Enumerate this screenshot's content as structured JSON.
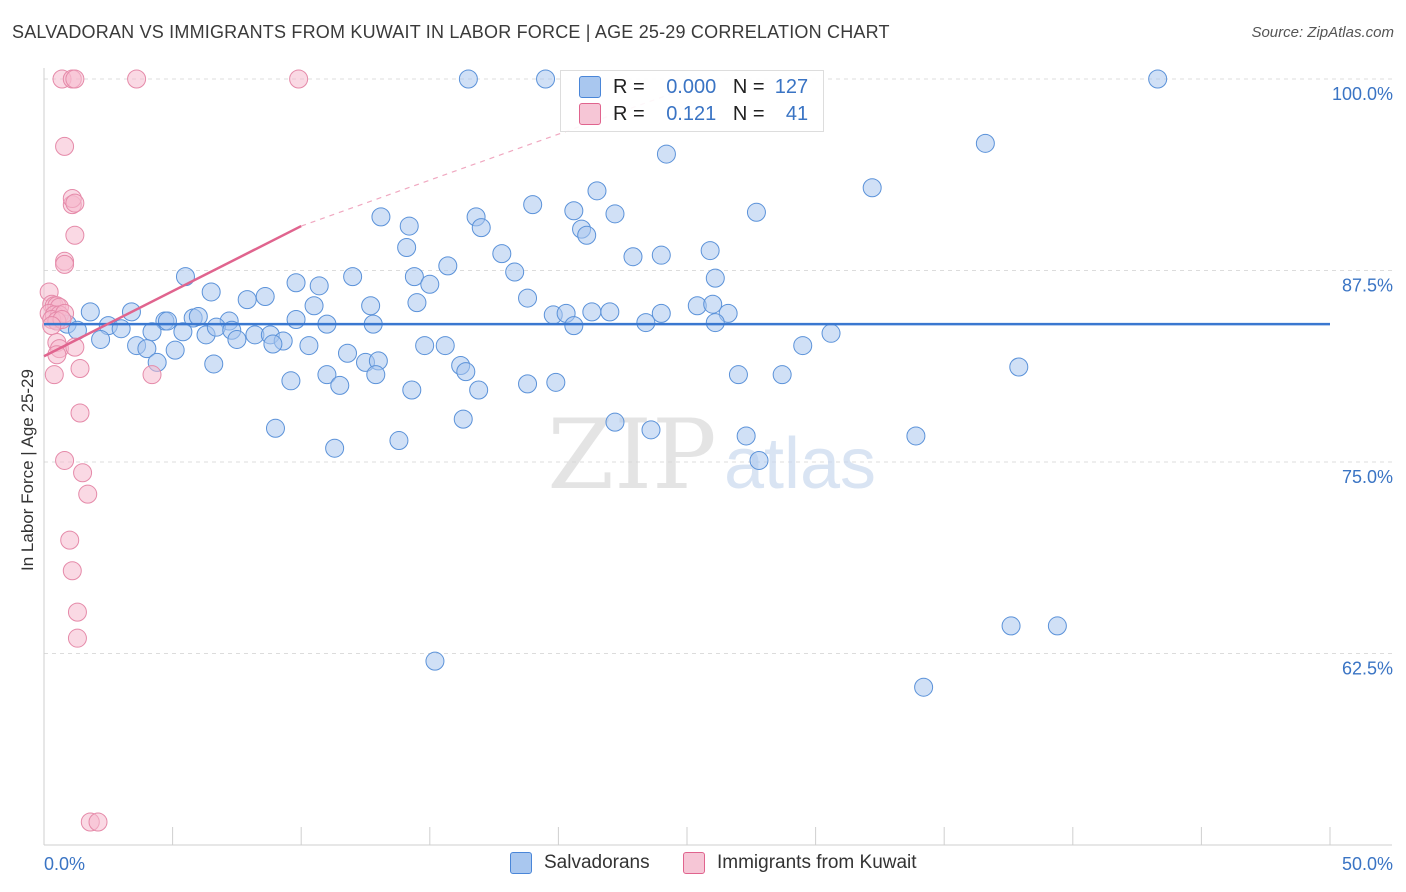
{
  "header": {
    "title": "SALVADORAN VS IMMIGRANTS FROM KUWAIT IN LABOR FORCE | AGE 25-29 CORRELATION CHART",
    "source": "Source: ZipAtlas.com"
  },
  "watermark": {
    "zip": "ZIP",
    "atlas": "atlas"
  },
  "legend": {
    "rows": [
      {
        "r_label": "R =",
        "r_value": "0.000",
        "n_label": "N =",
        "n_value": "127"
      },
      {
        "r_label": "R =",
        "r_value": "0.121",
        "n_label": "N =",
        "n_value": "41"
      }
    ]
  },
  "chart_data": {
    "type": "scatter",
    "title": "SALVADORAN VS IMMIGRANTS FROM KUWAIT IN LABOR FORCE | AGE 25-29 CORRELATION CHART",
    "xlabel": "",
    "ylabel": "In Labor Force | Age 25-29",
    "xlim": [
      0,
      50
    ],
    "ylim": [
      50,
      100
    ],
    "x_tick_labels": [
      "0.0%",
      "50.0%"
    ],
    "y_ticks": [
      62.5,
      75.0,
      87.5,
      100.0
    ],
    "y_tick_labels": [
      "62.5%",
      "75.0%",
      "87.5%",
      "100.0%"
    ],
    "grid": true,
    "legend_position": "top-center",
    "colors": {
      "blue": "#4a86d8",
      "blue_fill": "#a9c7ef",
      "pink": "#e0648e",
      "pink_fill": "#f6b9cd",
      "tick_label": "#3a74c4"
    },
    "series": [
      {
        "name": "Salvadorans",
        "color": "#4a86d8",
        "trend": {
          "x": [
            0.0,
            50.0
          ],
          "y": [
            84.0,
            84.0
          ]
        },
        "points": [
          [
            16.5,
            100
          ],
          [
            19.5,
            100
          ],
          [
            43.3,
            100
          ],
          [
            24.2,
            95.1
          ],
          [
            36.6,
            95.8
          ],
          [
            32.2,
            92.9
          ],
          [
            21.5,
            92.7
          ],
          [
            19.0,
            91.8
          ],
          [
            27.7,
            91.3
          ],
          [
            13.1,
            91.0
          ],
          [
            16.8,
            91.0
          ],
          [
            20.6,
            91.4
          ],
          [
            22.2,
            91.2
          ],
          [
            14.2,
            90.4
          ],
          [
            17.0,
            90.3
          ],
          [
            20.9,
            90.2
          ],
          [
            21.1,
            89.8
          ],
          [
            14.1,
            89.0
          ],
          [
            25.9,
            88.8
          ],
          [
            17.8,
            88.6
          ],
          [
            22.9,
            88.4
          ],
          [
            24.0,
            88.5
          ],
          [
            15.7,
            87.8
          ],
          [
            18.3,
            87.4
          ],
          [
            5.5,
            87.1
          ],
          [
            12.0,
            87.1
          ],
          [
            14.4,
            87.1
          ],
          [
            26.1,
            87.0
          ],
          [
            9.8,
            86.7
          ],
          [
            15.0,
            86.6
          ],
          [
            10.7,
            86.5
          ],
          [
            6.5,
            86.1
          ],
          [
            18.8,
            85.7
          ],
          [
            7.9,
            85.6
          ],
          [
            8.6,
            85.8
          ],
          [
            14.5,
            85.4
          ],
          [
            10.5,
            85.2
          ],
          [
            12.7,
            85.2
          ],
          [
            25.4,
            85.2
          ],
          [
            26.0,
            85.3
          ],
          [
            21.3,
            84.8
          ],
          [
            19.8,
            84.6
          ],
          [
            20.3,
            84.7
          ],
          [
            22.0,
            84.8
          ],
          [
            24.0,
            84.7
          ],
          [
            26.6,
            84.7
          ],
          [
            1.8,
            84.8
          ],
          [
            3.4,
            84.8
          ],
          [
            4.7,
            84.2
          ],
          [
            5.8,
            84.4
          ],
          [
            6.0,
            84.5
          ],
          [
            7.2,
            84.2
          ],
          [
            9.8,
            84.3
          ],
          [
            11.0,
            84.0
          ],
          [
            12.8,
            84.0
          ],
          [
            20.6,
            83.9
          ],
          [
            23.4,
            84.1
          ],
          [
            26.1,
            84.1
          ],
          [
            0.5,
            84.2
          ],
          [
            0.9,
            84.0
          ],
          [
            1.3,
            83.6
          ],
          [
            2.5,
            83.9
          ],
          [
            3.0,
            83.7
          ],
          [
            4.2,
            83.5
          ],
          [
            4.8,
            84.2
          ],
          [
            5.4,
            83.5
          ],
          [
            6.3,
            83.3
          ],
          [
            6.7,
            83.8
          ],
          [
            7.3,
            83.6
          ],
          [
            8.2,
            83.3
          ],
          [
            8.8,
            83.3
          ],
          [
            9.3,
            82.9
          ],
          [
            2.2,
            83.0
          ],
          [
            3.6,
            82.6
          ],
          [
            4.0,
            82.4
          ],
          [
            5.1,
            82.3
          ],
          [
            7.5,
            83.0
          ],
          [
            8.9,
            82.7
          ],
          [
            10.3,
            82.6
          ],
          [
            14.8,
            82.6
          ],
          [
            15.6,
            82.6
          ],
          [
            29.5,
            82.6
          ],
          [
            30.6,
            83.4
          ],
          [
            4.4,
            81.5
          ],
          [
            6.6,
            81.4
          ],
          [
            11.8,
            82.1
          ],
          [
            12.5,
            81.5
          ],
          [
            13.0,
            81.6
          ],
          [
            16.2,
            81.3
          ],
          [
            16.4,
            80.9
          ],
          [
            11.0,
            80.7
          ],
          [
            12.9,
            80.7
          ],
          [
            27.0,
            80.7
          ],
          [
            28.7,
            80.7
          ],
          [
            37.9,
            81.2
          ],
          [
            9.6,
            80.3
          ],
          [
            11.5,
            80.0
          ],
          [
            14.3,
            79.7
          ],
          [
            16.9,
            79.7
          ],
          [
            18.8,
            80.1
          ],
          [
            19.9,
            80.2
          ],
          [
            16.3,
            77.8
          ],
          [
            22.2,
            77.6
          ],
          [
            23.6,
            77.1
          ],
          [
            9.0,
            77.2
          ],
          [
            13.8,
            76.4
          ],
          [
            27.3,
            76.7
          ],
          [
            33.9,
            76.7
          ],
          [
            11.3,
            75.9
          ],
          [
            27.8,
            75.1
          ],
          [
            37.6,
            64.3
          ],
          [
            39.4,
            64.3
          ],
          [
            15.2,
            62.0
          ],
          [
            34.2,
            60.3
          ]
        ]
      },
      {
        "name": "Immigrants from Kuwait",
        "color": "#e0648e",
        "trend": {
          "x": [
            0.0,
            10.0
          ],
          "y": [
            81.9,
            90.4
          ]
        },
        "trend_extension": {
          "x": [
            10.0,
            26.0
          ],
          "y": [
            90.4,
            100.0
          ]
        },
        "points": [
          [
            0.7,
            100
          ],
          [
            1.1,
            100
          ],
          [
            1.2,
            100
          ],
          [
            3.6,
            100
          ],
          [
            9.9,
            100
          ],
          [
            0.8,
            95.6
          ],
          [
            1.1,
            91.8
          ],
          [
            1.1,
            92.2
          ],
          [
            1.2,
            91.9
          ],
          [
            1.2,
            89.8
          ],
          [
            0.8,
            88.1
          ],
          [
            0.8,
            87.9
          ],
          [
            0.2,
            86.1
          ],
          [
            0.3,
            85.3
          ],
          [
            0.4,
            85.2
          ],
          [
            0.5,
            85.2
          ],
          [
            0.6,
            85.1
          ],
          [
            0.2,
            84.7
          ],
          [
            0.4,
            84.6
          ],
          [
            0.6,
            84.6
          ],
          [
            0.8,
            84.7
          ],
          [
            0.3,
            84.3
          ],
          [
            0.5,
            84.2
          ],
          [
            0.7,
            84.3
          ],
          [
            0.3,
            83.9
          ],
          [
            0.5,
            82.8
          ],
          [
            0.6,
            82.4
          ],
          [
            1.2,
            82.5
          ],
          [
            0.5,
            82.0
          ],
          [
            1.4,
            81.1
          ],
          [
            0.4,
            80.7
          ],
          [
            4.2,
            80.7
          ],
          [
            1.4,
            78.2
          ],
          [
            0.8,
            75.1
          ],
          [
            1.5,
            74.3
          ],
          [
            1.7,
            72.9
          ],
          [
            1.0,
            69.9
          ],
          [
            1.1,
            67.9
          ],
          [
            1.3,
            65.2
          ],
          [
            1.3,
            63.5
          ],
          [
            1.8,
            51.5
          ],
          [
            2.1,
            51.5
          ]
        ]
      }
    ]
  }
}
